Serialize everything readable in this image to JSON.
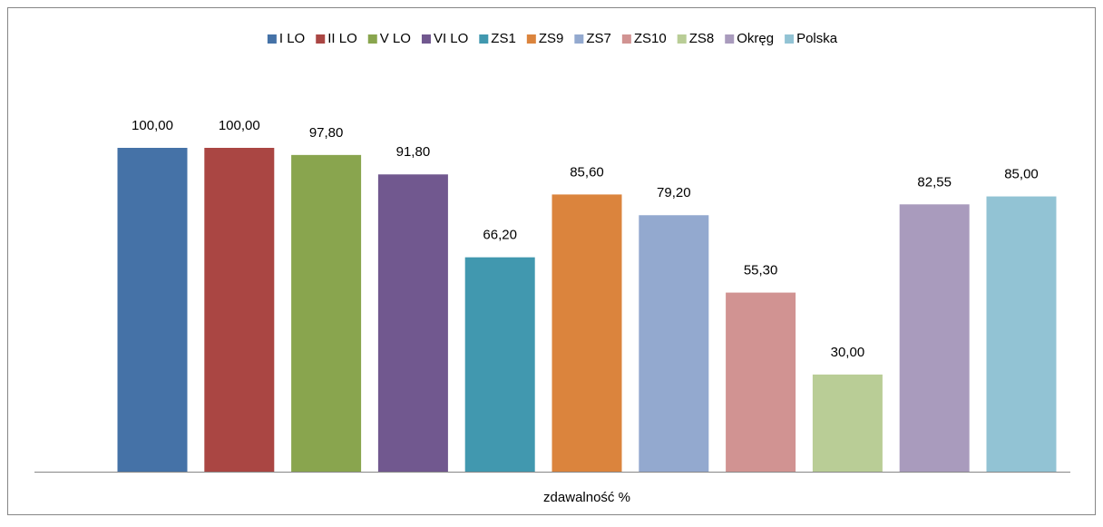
{
  "chart_data": {
    "type": "bar",
    "categories": [
      "zdawalność %"
    ],
    "ylim": [
      0,
      100
    ],
    "legend": "top",
    "series": [
      {
        "name": "I LO",
        "color": "#4572a7",
        "values": [
          100.0
        ],
        "value_labels": [
          "100,00"
        ]
      },
      {
        "name": "II LO",
        "color": "#aa4643",
        "values": [
          100.0
        ],
        "value_labels": [
          "100,00"
        ]
      },
      {
        "name": "V LO",
        "color": "#89a54e",
        "values": [
          97.8
        ],
        "value_labels": [
          "97,80"
        ]
      },
      {
        "name": "VI LO",
        "color": "#71588f",
        "values": [
          91.8
        ],
        "value_labels": [
          "91,80"
        ]
      },
      {
        "name": "ZS1",
        "color": "#4198af",
        "values": [
          66.2
        ],
        "value_labels": [
          "66,20"
        ]
      },
      {
        "name": "ZS9",
        "color": "#db843d",
        "values": [
          85.6
        ],
        "value_labels": [
          "85,60"
        ]
      },
      {
        "name": "ZS7",
        "color": "#93a9cf",
        "values": [
          79.2
        ],
        "value_labels": [
          "79,20"
        ]
      },
      {
        "name": "ZS10",
        "color": "#d19392",
        "values": [
          55.3
        ],
        "value_labels": [
          "55,30"
        ]
      },
      {
        "name": "ZS8",
        "color": "#b9cd96",
        "values": [
          30.0
        ],
        "value_labels": [
          "30,00"
        ]
      },
      {
        "name": "Okręg",
        "color": "#a99bbd",
        "values": [
          82.55
        ],
        "value_labels": [
          "82,55"
        ]
      },
      {
        "name": "Polska",
        "color": "#92c3d4",
        "values": [
          85.0
        ],
        "value_labels": [
          "85,00"
        ]
      }
    ]
  }
}
